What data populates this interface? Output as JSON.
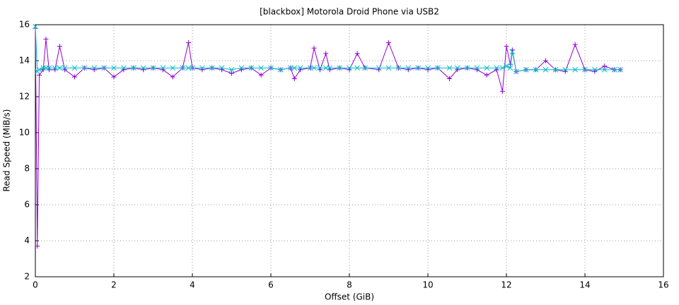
{
  "chart_data": {
    "type": "line",
    "title": "[blackbox] Motorola Droid Phone via USB2",
    "x_label": "Offset (GiB)",
    "y_label": "Read Speed (MiB/s)",
    "x": [
      0,
      0.05,
      0.1,
      0.2,
      0.27,
      0.35,
      0.5,
      0.62,
      0.75,
      1.0,
      1.25,
      1.5,
      1.75,
      2.0,
      2.25,
      2.5,
      2.75,
      3.0,
      3.25,
      3.5,
      3.75,
      3.9,
      4.0,
      4.25,
      4.5,
      4.75,
      5.0,
      5.25,
      5.5,
      5.75,
      6.0,
      6.25,
      6.5,
      6.6,
      6.75,
      7.0,
      7.1,
      7.25,
      7.4,
      7.5,
      7.75,
      8.0,
      8.2,
      8.4,
      8.75,
      9.0,
      9.25,
      9.5,
      9.75,
      10.0,
      10.25,
      10.55,
      10.75,
      11.0,
      11.25,
      11.5,
      11.75,
      11.9,
      12.0,
      12.1,
      12.15,
      12.25,
      12.5,
      12.75,
      13.0,
      13.25,
      13.5,
      13.75,
      14.0,
      14.25,
      14.5,
      14.75,
      14.9
    ],
    "series": [
      {
        "color": "#9400d3",
        "marker": "plus",
        "values": [
          15.8,
          3.7,
          13.2,
          13.5,
          15.2,
          13.5,
          13.5,
          14.8,
          13.5,
          13.1,
          13.6,
          13.5,
          13.6,
          13.1,
          13.5,
          13.6,
          13.5,
          13.6,
          13.5,
          13.1,
          13.6,
          15.0,
          13.6,
          13.5,
          13.6,
          13.5,
          13.3,
          13.5,
          13.6,
          13.2,
          13.6,
          13.5,
          13.6,
          13.0,
          13.5,
          13.6,
          14.7,
          13.5,
          14.4,
          13.5,
          13.6,
          13.5,
          14.4,
          13.6,
          13.5,
          15.0,
          13.6,
          13.5,
          13.6,
          13.5,
          13.6,
          13.0,
          13.5,
          13.6,
          13.5,
          13.2,
          13.5,
          12.3,
          14.8,
          13.8,
          14.6,
          13.4,
          13.5,
          13.5,
          14.0,
          13.5,
          13.4,
          14.9,
          13.5,
          13.4,
          13.7,
          13.5,
          13.5
        ]
      },
      {
        "color": "#00b8c8",
        "marker": "cross",
        "values": [
          15.9,
          13.4,
          13.5,
          13.6,
          13.6,
          13.6,
          13.6,
          13.6,
          13.6,
          13.6,
          13.6,
          13.6,
          13.6,
          13.6,
          13.6,
          13.6,
          13.6,
          13.6,
          13.6,
          13.6,
          13.6,
          13.6,
          13.6,
          13.6,
          13.6,
          13.6,
          13.5,
          13.6,
          13.6,
          13.6,
          13.6,
          13.5,
          13.6,
          13.6,
          13.6,
          13.6,
          13.6,
          13.6,
          13.6,
          13.6,
          13.6,
          13.6,
          13.6,
          13.6,
          13.6,
          13.6,
          13.6,
          13.6,
          13.6,
          13.6,
          13.6,
          13.6,
          13.6,
          13.6,
          13.6,
          13.6,
          13.6,
          13.6,
          13.7,
          13.6,
          14.5,
          13.4,
          13.5,
          13.5,
          13.5,
          13.5,
          13.5,
          13.5,
          13.5,
          13.5,
          13.5,
          13.5,
          13.5
        ]
      }
    ],
    "xlim": [
      0,
      16
    ],
    "xticks": [
      0,
      2,
      4,
      6,
      8,
      10,
      12,
      14,
      16
    ],
    "ylim": [
      2,
      16
    ],
    "yticks": [
      2,
      4,
      6,
      8,
      10,
      12,
      14,
      16
    ],
    "grid": true
  }
}
